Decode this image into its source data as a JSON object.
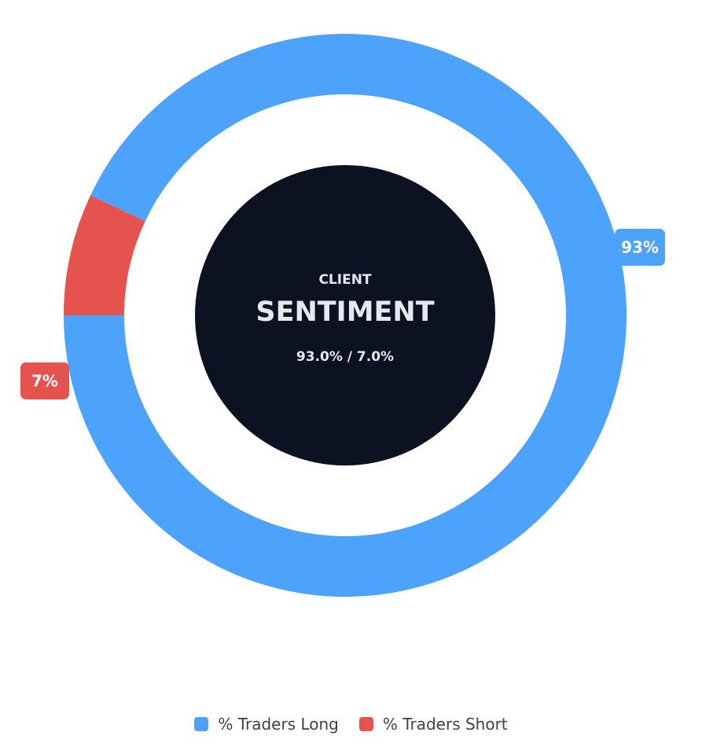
{
  "chart_data": {
    "type": "pie",
    "variant": "donut",
    "center": {
      "label_top": "CLIENT",
      "label_main": "SENTIMENT",
      "label_sub": "93.0% / 7.0%"
    },
    "slices": [
      {
        "name": "% Traders Long",
        "value": 93.0,
        "label": "93%",
        "color": "#4da3fc"
      },
      {
        "name": "% Traders Short",
        "value": 7.0,
        "label": "7%",
        "color": "#e5534f"
      }
    ],
    "start_angle_deg": 180,
    "legend_position": "bottom-center"
  },
  "colors": {
    "center_fill": "#0c1222",
    "center_text": "#e6e8ee",
    "label_text": "#ffffff"
  }
}
